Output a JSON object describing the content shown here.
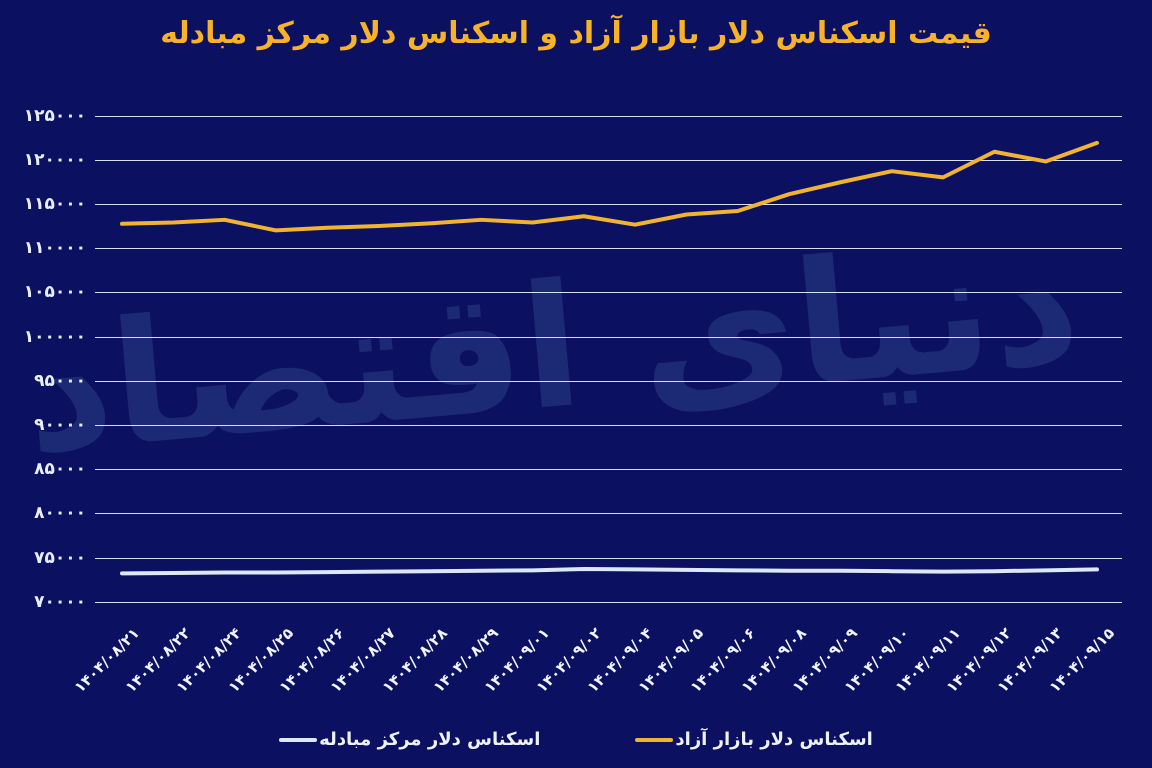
{
  "page": {
    "title": "قیمت اسکناس دلار بازار آزاد و اسکناس دلار مرکز مبادله",
    "watermark": "دنیای اقتصاد"
  },
  "colors": {
    "background": "#0c1060",
    "title": "#f8b229",
    "free_market_line": "#f0b332",
    "exchange_center_line": "#dde7f8",
    "gridline": "#ecf0fa",
    "axis_label": "#e8eefb",
    "watermark": "#1c2a76"
  },
  "chart_data": {
    "type": "line",
    "title": "قیمت اسکناس دلار بازار آزاد و اسکناس دلار مرکز مبادله",
    "categories": [
      "۱۴۰۴/۰۸/۲۱",
      "۱۴۰۴/۰۸/۲۲",
      "۱۴۰۴/۰۸/۲۴",
      "۱۴۰۴/۰۸/۲۵",
      "۱۴۰۴/۰۸/۲۶",
      "۱۴۰۴/۰۸/۲۷",
      "۱۴۰۴/۰۸/۲۸",
      "۱۴۰۴/۰۸/۲۹",
      "۱۴۰۴/۰۹/۰۱",
      "۱۴۰۴/۰۹/۰۲",
      "۱۴۰۴/۰۹/۰۴",
      "۱۴۰۴/۰۹/۰۵",
      "۱۴۰۴/۰۹/۰۶",
      "۱۴۰۴/۰۹/۰۸",
      "۱۴۰۴/۰۹/۰۹",
      "۱۴۰۴/۰۹/۱۰",
      "۱۴۰۴/۰۹/۱۱",
      "۱۴۰۴/۰۹/۱۲",
      "۱۴۰۴/۰۹/۱۳",
      "۱۴۰۴/۰۹/۱۵"
    ],
    "series": [
      {
        "name": "اسکناس دلار بازار آزاد",
        "color": "#f0b332",
        "values": [
          112750,
          112900,
          113200,
          112000,
          112300,
          112500,
          112800,
          113200,
          112900,
          113600,
          112650,
          113800,
          114200,
          116100,
          117450,
          118700,
          118000,
          120900,
          119800,
          121900
        ]
      },
      {
        "name": "اسکناس دلار مرکز مبادله",
        "color": "#dde7f8",
        "values": [
          73200,
          73250,
          73300,
          73300,
          73350,
          73400,
          73450,
          73500,
          73550,
          73700,
          73650,
          73600,
          73550,
          73500,
          73500,
          73450,
          73400,
          73450,
          73550,
          73650
        ]
      }
    ],
    "ylim": [
      70000,
      125000
    ],
    "ytick_step": 5000,
    "ytick_labels_top_to_bottom": [
      "۱۲۵۰۰۰",
      "۱۲۰۰۰۰",
      "۱۱۵۰۰۰",
      "۱۱۰۰۰۰",
      "۱۰۵۰۰۰",
      "۱۰۰۰۰۰",
      "۹۵۰۰۰",
      "۹۰۰۰۰",
      "۸۵۰۰۰",
      "۸۰۰۰۰",
      "۷۵۰۰۰",
      "۷۰۰۰۰"
    ],
    "grid": "horizontal-only",
    "legend_position": "bottom",
    "x_label_rotation_deg": 45
  },
  "legend": {
    "items": [
      {
        "label": "اسکناس دلار مرکز مبادله",
        "color": "#dde7f8"
      },
      {
        "label": "اسکناس دلار بازار آزاد",
        "color": "#f0b332"
      }
    ]
  }
}
